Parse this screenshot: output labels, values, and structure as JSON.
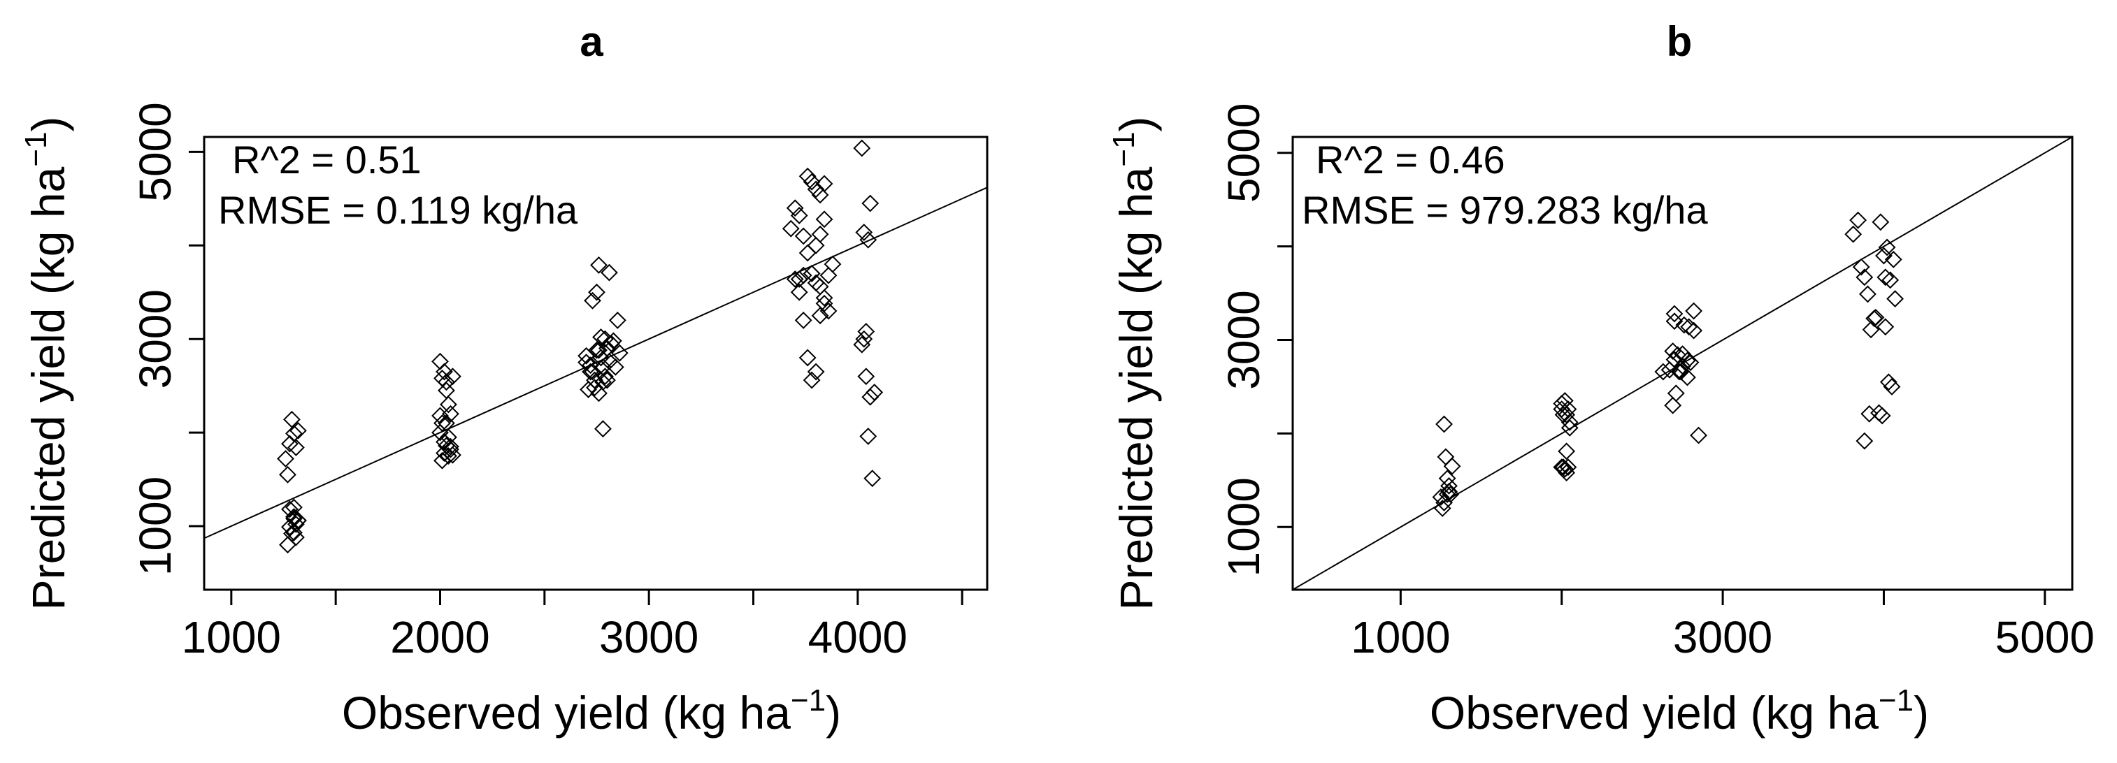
{
  "chart_data": [
    {
      "type": "scatter",
      "title": "a",
      "xlabel": "Observed yield (kg ha",
      "xlabel_sup": "−1",
      "xlabel_close": ")",
      "ylabel": "Predicted yield (kg ha",
      "ylabel_sup": "−1",
      "ylabel_close": ")",
      "xlim": [
        870,
        4620
      ],
      "ylim": [
        320,
        5160
      ],
      "xticks": [
        1000,
        1500,
        2000,
        2500,
        3000,
        3500,
        4000,
        4500
      ],
      "xtick_labels": [
        "1000",
        "",
        "2000",
        "",
        "3000",
        "",
        "4000",
        ""
      ],
      "yticks": [
        1000,
        2000,
        3000,
        4000,
        5000
      ],
      "ytick_labels": [
        "1000",
        "",
        "3000",
        "",
        "5000"
      ],
      "grid": false,
      "marker": "diamond",
      "fit_line": {
        "slope": 1.0,
        "intercept": 0,
        "x": [
          870,
          4620
        ],
        "y": [
          870,
          4620
        ]
      },
      "annotations": [
        "R^2 = 0.51",
        "RMSE = 0.119 kg/ha"
      ],
      "x": [
        1260,
        1280,
        1300,
        1320,
        1290,
        1310,
        1270,
        1300,
        1310,
        1280,
        1300,
        1320,
        1290,
        1270,
        1310,
        1300,
        1320,
        1280,
        1300,
        2000,
        2010,
        2020,
        2030,
        2040,
        2050,
        2000,
        2010,
        2020,
        2030,
        2040,
        2050,
        2060,
        2000,
        2010,
        2020,
        2030,
        2040,
        2050,
        2030,
        2060,
        2700,
        2720,
        2740,
        2760,
        2780,
        2800,
        2820,
        2840,
        2710,
        2730,
        2750,
        2770,
        2790,
        2810,
        2830,
        2850,
        2860,
        2700,
        2720,
        2740,
        2760,
        2780,
        2800,
        2730,
        2750,
        2770,
        2790,
        2810,
        2760,
        2780,
        3680,
        3700,
        3720,
        3740,
        3760,
        3780,
        3800,
        3820,
        3840,
        3860,
        3700,
        3720,
        3740,
        3760,
        3780,
        3800,
        3820,
        3840,
        3860,
        3880,
        3800,
        3820,
        3840,
        3760,
        3780,
        3800,
        3820,
        3840,
        3720,
        3740,
        3780,
        4020,
        4030,
        4050,
        4060,
        4040,
        4030,
        4020,
        4040,
        4060,
        4080,
        4050,
        4070
      ],
      "y": [
        1720,
        1880,
        1990,
        2020,
        2140,
        1840,
        1550,
        1080,
        1020,
        990,
        1100,
        1060,
        920,
        800,
        880,
        930,
        1060,
        1180,
        1200,
        2760,
        2580,
        2650,
        2540,
        2300,
        2200,
        2180,
        1700,
        1780,
        1860,
        1750,
        1820,
        1760,
        2000,
        2100,
        1900,
        2100,
        1950,
        1850,
        2450,
        2600,
        2820,
        2720,
        2560,
        2880,
        2700,
        2560,
        2950,
        2700,
        2460,
        2650,
        2880,
        2800,
        2600,
        2760,
        2980,
        3200,
        2850,
        2750,
        2650,
        2480,
        2420,
        2540,
        2900,
        3410,
        3500,
        3020,
        3000,
        3710,
        3790,
        2040,
        4180,
        4400,
        4320,
        4100,
        3920,
        3700,
        3600,
        3560,
        3440,
        3300,
        3640,
        3640,
        3200,
        2800,
        2560,
        2650,
        3250,
        3380,
        3680,
        3800,
        4000,
        4120,
        4280,
        4740,
        4680,
        4600,
        4540,
        4660,
        3500,
        3680,
        3700,
        5040,
        4140,
        4060,
        4450,
        3080,
        3000,
        2940,
        2600,
        2380,
        2430,
        1960,
        1510
      ]
    },
    {
      "type": "scatter",
      "title": "b",
      "xlabel": "Observed yield (kg ha",
      "xlabel_sup": "−1",
      "xlabel_close": ")",
      "ylabel": "Predicted yield (kg ha",
      "ylabel_sup": "−1",
      "ylabel_close": ")",
      "xlim": [
        330,
        5170
      ],
      "ylim": [
        330,
        5170
      ],
      "xticks": [
        1000,
        2000,
        3000,
        4000,
        5000
      ],
      "xtick_labels": [
        "1000",
        "",
        "3000",
        "",
        "5000"
      ],
      "yticks": [
        1000,
        2000,
        3000,
        4000,
        5000
      ],
      "ytick_labels": [
        "1000",
        "",
        "3000",
        "",
        "5000"
      ],
      "grid": false,
      "marker": "diamond",
      "fit_line": {
        "slope": 1.0,
        "intercept": 0,
        "x": [
          330,
          5170
        ],
        "y": [
          330,
          5170
        ]
      },
      "annotations": [
        "R^2 = 0.46",
        "RMSE = 979.283 kg/ha"
      ],
      "x": [
        1260,
        1300,
        1320,
        1280,
        1290,
        1310,
        1270,
        1290,
        1300,
        1270,
        1250,
        2000,
        2020,
        2030,
        2040,
        2050,
        2030,
        2010,
        2020,
        2000,
        2030,
        2040,
        2050,
        2010,
        2000,
        2630,
        2670,
        2700,
        2720,
        2750,
        2780,
        2800,
        2820,
        2690,
        2710,
        2740,
        2690,
        2700,
        2760,
        2790,
        2820,
        2730,
        2750,
        2780,
        2850,
        2700,
        3810,
        3840,
        3860,
        3880,
        3900,
        3920,
        3950,
        3980,
        4000,
        4010,
        4020,
        4030,
        4050,
        4070,
        4060,
        4040,
        4010,
        3990,
        3970,
        3940,
        3910,
        3880
      ],
      "y": [
        1200,
        1380,
        1650,
        1750,
        1520,
        1350,
        1260,
        1350,
        1440,
        2100,
        1320,
        2320,
        2350,
        2200,
        2260,
        2120,
        1810,
        1640,
        1620,
        1640,
        1580,
        1640,
        2060,
        2200,
        2260,
        2660,
        2680,
        2790,
        2840,
        2850,
        2780,
        2760,
        3100,
        2300,
        2430,
        2660,
        2880,
        3280,
        3160,
        3140,
        3310,
        2660,
        2720,
        2600,
        1980,
        3200,
        4130,
        4280,
        3780,
        3670,
        3490,
        3110,
        3240,
        4260,
        3900,
        3670,
        3990,
        2550,
        2500,
        3440,
        3860,
        3640,
        3140,
        2190,
        2220,
        3230,
        2210,
        1920
      ]
    }
  ]
}
